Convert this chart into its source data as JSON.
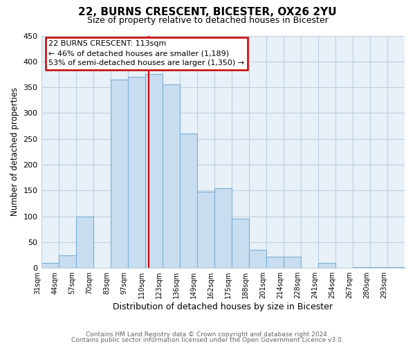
{
  "title": "22, BURNS CRESCENT, BICESTER, OX26 2YU",
  "subtitle": "Size of property relative to detached houses in Bicester",
  "xlabel": "Distribution of detached houses by size in Bicester",
  "ylabel": "Number of detached properties",
  "bin_labels": [
    "31sqm",
    "44sqm",
    "57sqm",
    "70sqm",
    "83sqm",
    "97sqm",
    "110sqm",
    "123sqm",
    "136sqm",
    "149sqm",
    "162sqm",
    "175sqm",
    "188sqm",
    "201sqm",
    "214sqm",
    "228sqm",
    "241sqm",
    "254sqm",
    "267sqm",
    "280sqm",
    "293sqm"
  ],
  "bar_heights": [
    10,
    25,
    100,
    0,
    365,
    370,
    375,
    355,
    260,
    148,
    155,
    95,
    35,
    22,
    22,
    0,
    10,
    0,
    2,
    2,
    2
  ],
  "bar_color": "#c8ddf0",
  "bar_edge_color": "#7aafd4",
  "plot_bg_color": "#e8f0f8",
  "ylim": [
    0,
    450
  ],
  "yticks": [
    0,
    50,
    100,
    150,
    200,
    250,
    300,
    350,
    400,
    450
  ],
  "property_line_label": "22 BURNS CRESCENT: 113sqm",
  "annotation_line1": "← 46% of detached houses are smaller (1,189)",
  "annotation_line2": "53% of semi-detached houses are larger (1,350) →",
  "annotation_box_color": "#ffffff",
  "annotation_border_color": "#cc0000",
  "vline_color": "#cc0000",
  "vline_x_bin_index": 6,
  "footer1": "Contains HM Land Registry data © Crown copyright and database right 2024.",
  "footer2": "Contains public sector information licensed under the Open Government Licence v3.0.",
  "background_color": "#ffffff",
  "grid_color": "#c0cfe0"
}
